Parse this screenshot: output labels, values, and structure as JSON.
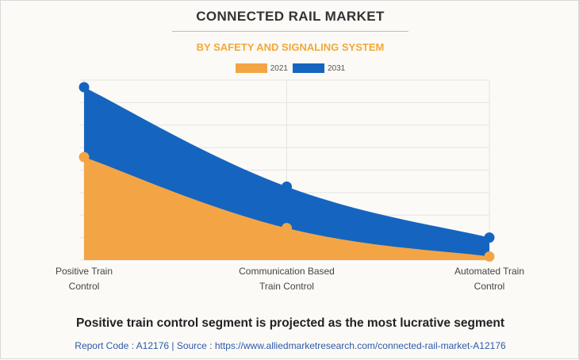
{
  "header": {
    "title": "CONNECTED RAIL MARKET",
    "subtitle": "BY SAFETY AND SIGNALING SYSTEM"
  },
  "colors": {
    "series_2021": "#f3a545",
    "series_2031": "#1565c0",
    "subtitle": "#f3a83a",
    "footer": "#2e5aa8"
  },
  "chart_data": {
    "type": "area",
    "title": "CONNECTED RAIL MARKET",
    "subtitle": "BY SAFETY AND SIGNALING SYSTEM",
    "categories": [
      "Positive Train Control",
      "Communication Based Train Control",
      "Automated Train Control"
    ],
    "category_lines": [
      [
        "Positive Train",
        "Control"
      ],
      [
        "Communication Based",
        "Train Control"
      ],
      [
        "Automated Train",
        "Control"
      ]
    ],
    "series": [
      {
        "name": "2021",
        "values": [
          4.35,
          1.35,
          0.15
        ]
      },
      {
        "name": "2031",
        "values": [
          7.3,
          3.1,
          0.95
        ]
      }
    ],
    "stacked": false,
    "ylim": [
      0,
      7.6
    ],
    "y_gridlines": 8,
    "y_tick_labels_visible": false,
    "legend_position": "top-center",
    "xlabel": "",
    "ylabel": ""
  },
  "footer": {
    "headline": "Positive train control segment is projected as the most lucrative segment",
    "report": "Report Code : A12176  |  Source : https://www.alliedmarketresearch.com/connected-rail-market-A12176"
  }
}
